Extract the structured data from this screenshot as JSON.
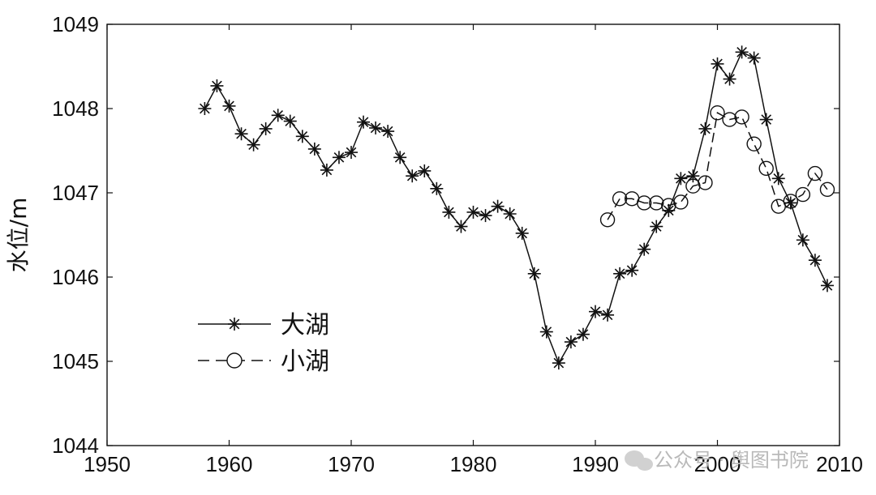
{
  "chart_data": {
    "type": "line",
    "xlabel": "",
    "ylabel": "水位/m",
    "xlim": [
      1950,
      2010
    ],
    "ylim": [
      1044,
      1049
    ],
    "xticks": [
      1950,
      1960,
      1970,
      1980,
      1990,
      2000,
      2010
    ],
    "yticks": [
      1044,
      1045,
      1046,
      1047,
      1048,
      1049
    ],
    "grid": false,
    "legend": "left-center",
    "series": [
      {
        "name": "大湖",
        "marker": "asterisk",
        "line": "solid",
        "color": "#111111",
        "x": [
          1958,
          1959,
          1960,
          1961,
          1962,
          1963,
          1964,
          1965,
          1966,
          1967,
          1968,
          1969,
          1970,
          1971,
          1972,
          1973,
          1974,
          1975,
          1976,
          1977,
          1978,
          1979,
          1980,
          1981,
          1982,
          1983,
          1984,
          1985,
          1986,
          1987,
          1988,
          1989,
          1990,
          1991,
          1992,
          1993,
          1994,
          1995,
          1996,
          1997,
          1998,
          1999,
          2000,
          2001,
          2002,
          2003,
          2004,
          2005,
          2006,
          2007,
          2008,
          2009
        ],
        "y": [
          1048.0,
          1048.27,
          1048.03,
          1047.7,
          1047.57,
          1047.76,
          1047.92,
          1047.85,
          1047.67,
          1047.52,
          1047.27,
          1047.42,
          1047.48,
          1047.84,
          1047.77,
          1047.73,
          1047.42,
          1047.2,
          1047.26,
          1047.05,
          1046.77,
          1046.6,
          1046.77,
          1046.73,
          1046.84,
          1046.75,
          1046.52,
          1046.04,
          1045.35,
          1044.98,
          1045.23,
          1045.32,
          1045.59,
          1045.55,
          1046.04,
          1046.08,
          1046.33,
          1046.6,
          1046.79,
          1047.17,
          1047.2,
          1047.76,
          1048.53,
          1048.35,
          1048.67,
          1048.6,
          1047.87,
          1047.17,
          1046.88,
          1046.44,
          1046.2,
          1045.9
        ]
      },
      {
        "name": "小湖",
        "marker": "circle",
        "line": "dashed",
        "color": "#111111",
        "x": [
          1991,
          1992,
          1993,
          1994,
          1995,
          1996,
          1997,
          1998,
          1999,
          2000,
          2001,
          2002,
          2003,
          2004,
          2005,
          2006,
          2007,
          2008,
          2009
        ],
        "y": [
          1046.68,
          1046.93,
          1046.93,
          1046.88,
          1046.88,
          1046.85,
          1046.89,
          1047.08,
          1047.12,
          1047.95,
          1047.87,
          1047.9,
          1047.58,
          1047.29,
          1046.84,
          1046.9,
          1046.98,
          1047.23,
          1047.04
        ]
      }
    ]
  },
  "watermark": {
    "text": "公众号 · 舆图书院",
    "icon": "wechat-icon"
  }
}
